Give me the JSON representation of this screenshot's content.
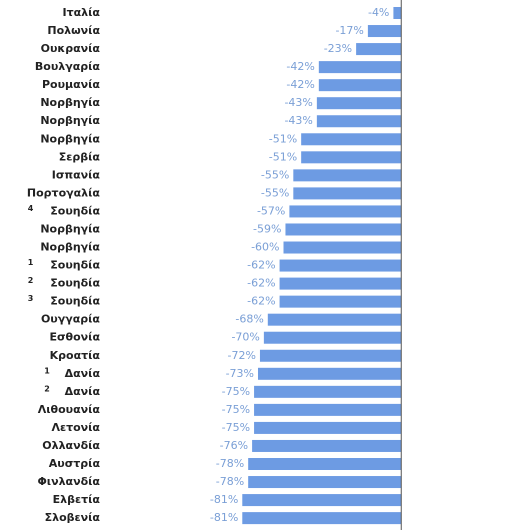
{
  "chart_data": {
    "type": "hbar",
    "categories": [
      "Ιταλία",
      "Πολωνία",
      "Ουκρανία",
      "Βουλγαρία",
      "Ρουμανία",
      "Νορβηγία",
      "Νορβηγία",
      "Νορβηγία",
      "Σερβία",
      "Ισπανία",
      "Πορτογαλία",
      "Σουηδία",
      "Νορβηγία",
      "Νορβηγία",
      "Σουηδία",
      "Σουηδία",
      "Σουηδία",
      "Ουγγαρία",
      "Εσθονία",
      "Κροατία",
      "Δανία",
      "Δανία",
      "Λιθουανία",
      "Λετονία",
      "Ολλανδία",
      "Αυστρία",
      "Φινλανδία",
      "Ελβετία",
      "Σλοβενία"
    ],
    "notes": [
      null,
      null,
      null,
      null,
      null,
      null,
      null,
      null,
      null,
      null,
      null,
      "4",
      null,
      null,
      "1",
      "2",
      "3",
      null,
      null,
      null,
      "1",
      "2",
      null,
      null,
      null,
      null,
      null,
      null,
      null
    ],
    "values": [
      -4,
      -17,
      -23,
      -42,
      -42,
      -43,
      -43,
      -51,
      -51,
      -55,
      -55,
      -57,
      -59,
      -60,
      -62,
      -62,
      -62,
      -68,
      -70,
      -72,
      -73,
      -75,
      -75,
      -75,
      -76,
      -78,
      -78,
      -81,
      -81
    ],
    "value_labels": [
      "-4%",
      "-17%",
      "-23%",
      "-42%",
      "-42%",
      "-43%",
      "-43%",
      "-51%",
      "-51%",
      "-55%",
      "-55%",
      "-57%",
      "-59%",
      "-60%",
      "-62%",
      "-62%",
      "-62%",
      "-68%",
      "-70%",
      "-72%",
      "-73%",
      "-75%",
      "-75%",
      "-75%",
      "-76%",
      "-78%",
      "-78%",
      "-81%",
      "-81%"
    ],
    "color": "#6d9be3",
    "xlim": [
      -100,
      60
    ]
  }
}
